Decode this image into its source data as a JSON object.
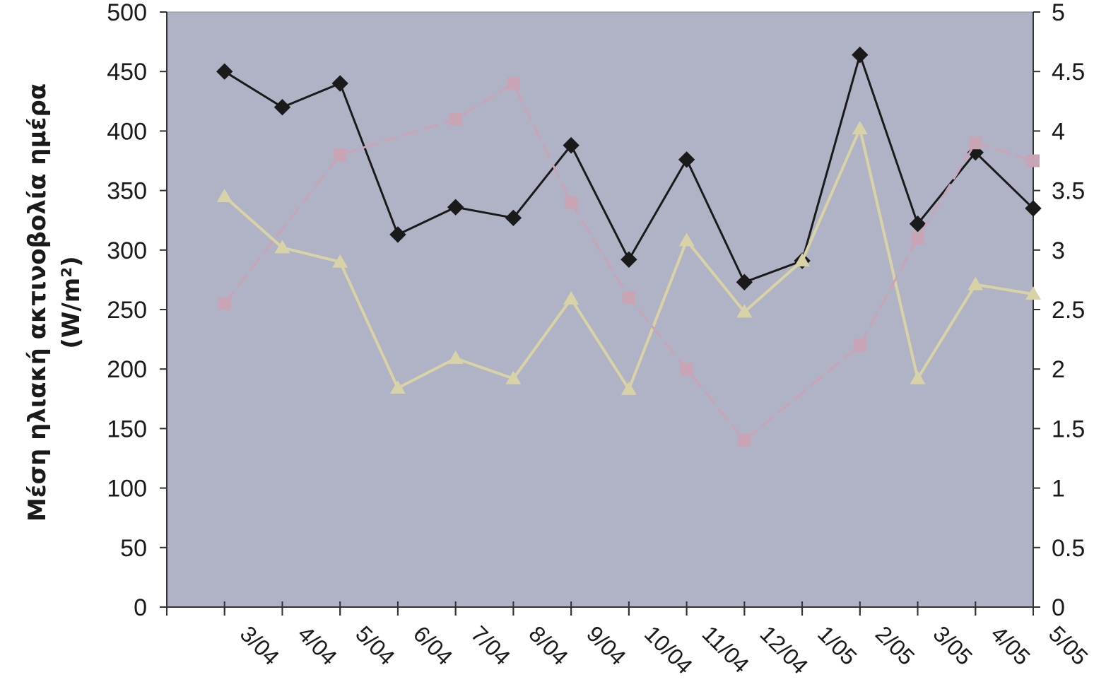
{
  "chart_data": {
    "type": "line",
    "title": "",
    "ylabel": "Μέση ηλιακή ακτινοβολία ημέρα",
    "ylabel_unit": "(W/m²)",
    "y_left": {
      "lim": [
        0,
        500
      ],
      "ticks": [
        0,
        50,
        100,
        150,
        200,
        250,
        300,
        350,
        400,
        450,
        500
      ]
    },
    "y_right": {
      "lim": [
        0,
        5
      ],
      "ticks": [
        "0",
        "0.5",
        "1",
        "1.5",
        "2",
        "2.5",
        "3",
        "3.5",
        "4",
        "4.5",
        "5"
      ]
    },
    "categories": [
      "3/04",
      "4/04",
      "5/04",
      "6/04",
      "7/04",
      "8/04",
      "9/04",
      "10/04",
      "11/04",
      "12/04",
      "1/05",
      "2/05",
      "3/05",
      "4/05",
      "5/05"
    ],
    "plot_background": "#b0b2c6",
    "grid": false,
    "legend": "none",
    "series": [
      {
        "axis": "left",
        "color": "#1a1a1a",
        "marker": "diamond",
        "values": [
          450,
          420,
          440,
          313,
          336,
          327,
          388,
          292,
          376,
          273,
          291,
          464,
          322,
          382,
          335
        ]
      },
      {
        "axis": "left",
        "color": "#d8d3a6",
        "marker": "triangle",
        "values": [
          345,
          302,
          290,
          184,
          209,
          192,
          259,
          183,
          308,
          248,
          291,
          402,
          192,
          271,
          263
        ]
      },
      {
        "axis": "right",
        "color": "#c9a4b4",
        "marker": "square",
        "dashed": true,
        "values": [
          2.55,
          null,
          3.8,
          null,
          4.1,
          4.4,
          3.4,
          2.6,
          2.0,
          1.4,
          null,
          2.2,
          3.1,
          3.9,
          3.75
        ]
      }
    ]
  }
}
